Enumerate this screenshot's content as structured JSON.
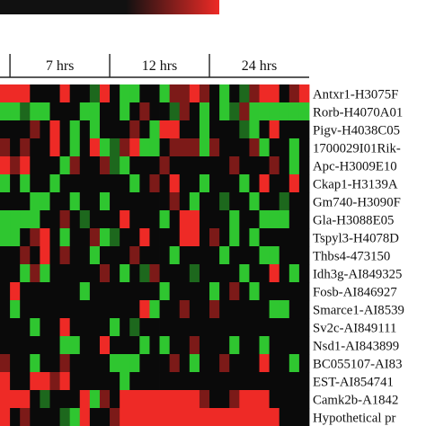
{
  "chart_data": {
    "type": "heatmap",
    "colors": {
      "low": "#2fc630",
      "mid": "#0a0a0a",
      "high": "#ee2a26",
      "background": "#ffffff",
      "line": "#222222"
    },
    "colorbar": {
      "from": "#111111",
      "to": "#ee2a26"
    },
    "groups": [
      {
        "label": "",
        "columns": 1
      },
      {
        "label": "7 hrs",
        "columns": 10
      },
      {
        "label": "12 hrs",
        "columns": 10
      },
      {
        "label": "24 hrs",
        "columns": 10
      }
    ],
    "genes": [
      "Antxr1-H3075F",
      "Rorb-H4070A01",
      "Pigv-H4038C05",
      "1700029I01Rik-",
      "Apc-H3009E10",
      "Ckap1-H3139A",
      "Gm740-H3090F",
      "Gla-H3088E05",
      "Tspyl3-H4078D",
      "Thbs4-473150",
      "Idh3g-AI849325",
      "Fosb-AI846927",
      "Smarce1-AI8539",
      "Sv2c-AI849111",
      "Nsd1-AI843899",
      "BC055107-AI83",
      "EST-AI854741",
      "Camk2b-A1842",
      "Hypothetical pr"
    ],
    "values": [
      [
        1,
        1,
        1,
        0,
        0,
        0,
        1,
        0,
        0,
        -0.5,
        1,
        0,
        -1,
        -1,
        0,
        0,
        -1,
        0.5,
        0.5,
        1,
        0.5,
        0,
        -1,
        0,
        -0.5,
        0.5,
        1,
        1,
        0,
        0.5,
        1
      ],
      [
        -1,
        -1,
        -0.5,
        -1,
        -1,
        0,
        0,
        0,
        -1,
        -1,
        0,
        0,
        -1,
        0,
        0.5,
        0,
        0,
        -0.5,
        0.5,
        0,
        -1,
        0,
        -1,
        -0.5,
        0.5,
        -1,
        -1,
        -1,
        -1,
        -1,
        -1
      ],
      [
        0,
        0,
        0,
        0.5,
        0,
        1,
        0,
        -1,
        0,
        -1,
        0,
        0,
        0,
        0.5,
        0,
        -1,
        1,
        1,
        0,
        0,
        -1,
        0,
        0,
        0,
        -0.5,
        -1,
        0,
        1,
        0,
        0,
        0
      ],
      [
        0.5,
        0,
        0.5,
        0,
        0,
        1,
        0,
        -1,
        0,
        1,
        -1,
        -0.5,
        0.5,
        1,
        -1,
        -1,
        0,
        0.5,
        0.5,
        0.5,
        -1,
        0.5,
        0,
        0,
        0,
        0.5,
        -1,
        0,
        0,
        -1,
        0
      ],
      [
        1,
        0.5,
        1,
        0,
        0,
        0,
        -1,
        0.5,
        0,
        0,
        0.5,
        -0.5,
        -1,
        0,
        0,
        0,
        0.5,
        0,
        0,
        0,
        0,
        0,
        0,
        0.5,
        0,
        0,
        0,
        0.5,
        0,
        -1,
        0
      ],
      [
        -1,
        0,
        -1,
        0,
        0,
        -1,
        0,
        0,
        0,
        0,
        0,
        0,
        0,
        -1,
        0,
        0.5,
        0,
        1,
        0,
        0,
        -1,
        0,
        0,
        0,
        -1,
        0,
        1,
        0,
        0,
        1,
        0
      ],
      [
        0,
        0,
        0,
        -1,
        -1,
        0,
        0,
        -1,
        0,
        0,
        -1,
        0,
        0,
        0,
        0,
        0,
        0,
        0.5,
        0,
        -1,
        0,
        0,
        -0.5,
        0,
        0,
        -1,
        0,
        0,
        -0.5,
        0,
        0
      ],
      [
        -1,
        -1,
        -1,
        -1,
        0,
        0,
        0.5,
        0,
        -0.5,
        0,
        0,
        0,
        1,
        0,
        0,
        0,
        -1,
        0,
        1,
        1,
        0,
        0,
        0,
        -1,
        0,
        0,
        -1,
        -1,
        -1,
        0,
        0
      ],
      [
        -1,
        -1,
        0,
        0.5,
        1,
        0,
        -1,
        0,
        0,
        0.5,
        -1,
        -0.5,
        0,
        0,
        1,
        0,
        0,
        0,
        1,
        1,
        0,
        0.5,
        0,
        -1,
        0,
        -1,
        0,
        0,
        0,
        0,
        0
      ],
      [
        0,
        0,
        0.5,
        0,
        1,
        0,
        0.5,
        0,
        0,
        -1,
        0,
        0,
        0,
        0.5,
        0,
        0,
        0,
        -1,
        0,
        0,
        0,
        0,
        -1,
        0,
        0,
        0,
        -1,
        -1,
        0,
        0,
        0
      ],
      [
        0,
        0,
        -1,
        0.5,
        -1,
        0,
        0,
        0,
        0,
        0,
        0.5,
        0,
        -1,
        0,
        -0.5,
        0.5,
        0,
        0,
        0,
        -0.5,
        0,
        0,
        0,
        0,
        -1,
        0,
        0,
        1,
        0,
        -1,
        0
      ],
      [
        0,
        1,
        0,
        0,
        0,
        0,
        0,
        0,
        -1,
        0,
        0,
        0,
        0,
        0,
        0,
        0,
        -1,
        0,
        0,
        0,
        0,
        -1,
        0,
        0.5,
        0,
        -1,
        0,
        0,
        0,
        0,
        0
      ],
      [
        0,
        -1,
        0,
        0,
        0,
        0,
        0,
        0,
        0,
        0,
        0,
        0,
        0,
        0,
        1,
        -1,
        0,
        0,
        0.5,
        0,
        0,
        0.5,
        0,
        0,
        0,
        0,
        0,
        -1,
        -1,
        0,
        0
      ],
      [
        0,
        0,
        0,
        -1,
        0,
        0,
        1,
        0,
        0,
        0,
        0,
        -1,
        0,
        -0.5,
        0,
        0,
        0,
        0,
        0,
        0,
        0,
        0,
        0,
        0,
        0,
        0,
        0,
        0,
        0,
        0,
        0
      ],
      [
        0,
        0,
        0,
        0,
        0,
        0,
        -1,
        -1,
        0,
        0,
        1,
        0,
        0,
        0,
        -1,
        0,
        -1,
        0,
        0,
        0.5,
        0,
        0,
        0,
        -1,
        0,
        0,
        -1,
        0,
        0,
        0,
        0
      ],
      [
        0.5,
        0,
        0,
        -1,
        0,
        0,
        0.5,
        0,
        0,
        0,
        0,
        -1,
        -1,
        -1,
        0,
        0,
        0,
        0.5,
        0,
        -1,
        0,
        0,
        0.5,
        0,
        0,
        0,
        1,
        0,
        0,
        -1,
        0
      ],
      [
        1,
        0,
        0,
        1,
        1,
        0.5,
        1,
        0,
        0,
        0,
        0,
        0,
        -1,
        0,
        0,
        0,
        0,
        0,
        0,
        0,
        0,
        0,
        0,
        0,
        0,
        0,
        0,
        0,
        0,
        0,
        0
      ],
      [
        1,
        1,
        1,
        0,
        -0.5,
        0,
        0,
        0,
        1,
        -1,
        0.5,
        0,
        1,
        1,
        1,
        1,
        1,
        1,
        1,
        1,
        0.5,
        0,
        0,
        0.5,
        1,
        1,
        1,
        0,
        0,
        0,
        0
      ],
      [
        1,
        0,
        0.5,
        0,
        0,
        0,
        -0.5,
        -1,
        1,
        0,
        0,
        0.5,
        1,
        1,
        1,
        1,
        1,
        1,
        1,
        1,
        1,
        1,
        1,
        1,
        1,
        1,
        1,
        1,
        0,
        0,
        0
      ]
    ]
  }
}
